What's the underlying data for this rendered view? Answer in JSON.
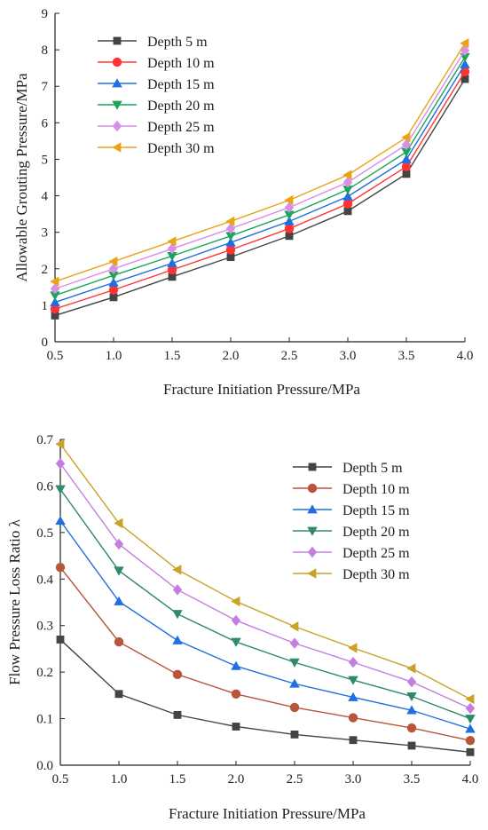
{
  "chart_data": [
    {
      "type": "line",
      "xlabel": "Fracture Initiation Pressure/MPa",
      "ylabel": "Allowable Grouting Pressure/MPa",
      "xlim": [
        0.5,
        4.0
      ],
      "ylim": [
        0,
        9
      ],
      "xticks": [
        "0.5",
        "1.0",
        "1.5",
        "2.0",
        "2.5",
        "3.0",
        "3.5",
        "4.0"
      ],
      "yticks": [
        "0",
        "1",
        "2",
        "3",
        "4",
        "5",
        "6",
        "7",
        "8",
        "9"
      ],
      "legend_position": "top-left",
      "x": [
        0.5,
        1.0,
        1.5,
        2.0,
        2.5,
        3.0,
        3.5,
        4.0
      ],
      "series": [
        {
          "name": "Depth 5 m",
          "color": "#444444",
          "marker": "square",
          "values": [
            0.72,
            1.22,
            1.78,
            2.32,
            2.9,
            3.58,
            4.6,
            7.2
          ]
        },
        {
          "name": "Depth 10 m",
          "color": "#ff3333",
          "marker": "circle",
          "values": [
            0.9,
            1.42,
            1.97,
            2.52,
            3.1,
            3.78,
            4.8,
            7.4
          ]
        },
        {
          "name": "Depth 15 m",
          "color": "#1f6fe0",
          "marker": "triangle-up",
          "values": [
            1.08,
            1.62,
            2.15,
            2.72,
            3.3,
            3.98,
            5.0,
            7.6
          ]
        },
        {
          "name": "Depth 20 m",
          "color": "#1aa55a",
          "marker": "triangle-down",
          "values": [
            1.27,
            1.82,
            2.35,
            2.9,
            3.48,
            4.17,
            5.2,
            7.8
          ]
        },
        {
          "name": "Depth 25 m",
          "color": "#d98ee8",
          "marker": "diamond",
          "values": [
            1.45,
            2.0,
            2.55,
            3.1,
            3.68,
            4.37,
            5.4,
            7.98
          ]
        },
        {
          "name": "Depth 30 m",
          "color": "#e8a317",
          "marker": "triangle-left",
          "values": [
            1.65,
            2.2,
            2.75,
            3.3,
            3.88,
            4.57,
            5.6,
            8.18
          ]
        }
      ]
    },
    {
      "type": "line",
      "xlabel": "Fracture Initiation Pressure/MPa",
      "ylabel": "Flow Pressure Loss Ratio λ",
      "xlim": [
        0.5,
        4.0
      ],
      "ylim": [
        0,
        0.7
      ],
      "xticks": [
        "0.5",
        "1.0",
        "1.5",
        "2.0",
        "2.5",
        "3.0",
        "3.5",
        "4.0"
      ],
      "yticks": [
        "0.0",
        "0.1",
        "0.2",
        "0.3",
        "0.4",
        "0.5",
        "0.6",
        "0.7"
      ],
      "legend_position": "top-right",
      "x": [
        0.5,
        1.0,
        1.5,
        2.0,
        2.5,
        3.0,
        3.5,
        4.0
      ],
      "series": [
        {
          "name": "Depth 5 m",
          "color": "#444444",
          "marker": "square",
          "values": [
            0.27,
            0.153,
            0.108,
            0.083,
            0.066,
            0.054,
            0.042,
            0.028
          ]
        },
        {
          "name": "Depth 10 m",
          "color": "#b8553a",
          "marker": "circle",
          "values": [
            0.425,
            0.265,
            0.195,
            0.153,
            0.124,
            0.102,
            0.08,
            0.053
          ]
        },
        {
          "name": "Depth 15 m",
          "color": "#1f6fe0",
          "marker": "triangle-up",
          "values": [
            0.525,
            0.352,
            0.268,
            0.213,
            0.175,
            0.146,
            0.118,
            0.078
          ]
        },
        {
          "name": "Depth 20 m",
          "color": "#2e8b68",
          "marker": "triangle-down",
          "values": [
            0.593,
            0.418,
            0.325,
            0.265,
            0.221,
            0.183,
            0.148,
            0.1
          ]
        },
        {
          "name": "Depth 25 m",
          "color": "#c57ee0",
          "marker": "diamond",
          "values": [
            0.648,
            0.475,
            0.377,
            0.311,
            0.262,
            0.221,
            0.179,
            0.122
          ]
        },
        {
          "name": "Depth 30 m",
          "color": "#c9a227",
          "marker": "triangle-left",
          "values": [
            0.69,
            0.52,
            0.42,
            0.352,
            0.298,
            0.252,
            0.208,
            0.142
          ]
        }
      ]
    }
  ]
}
